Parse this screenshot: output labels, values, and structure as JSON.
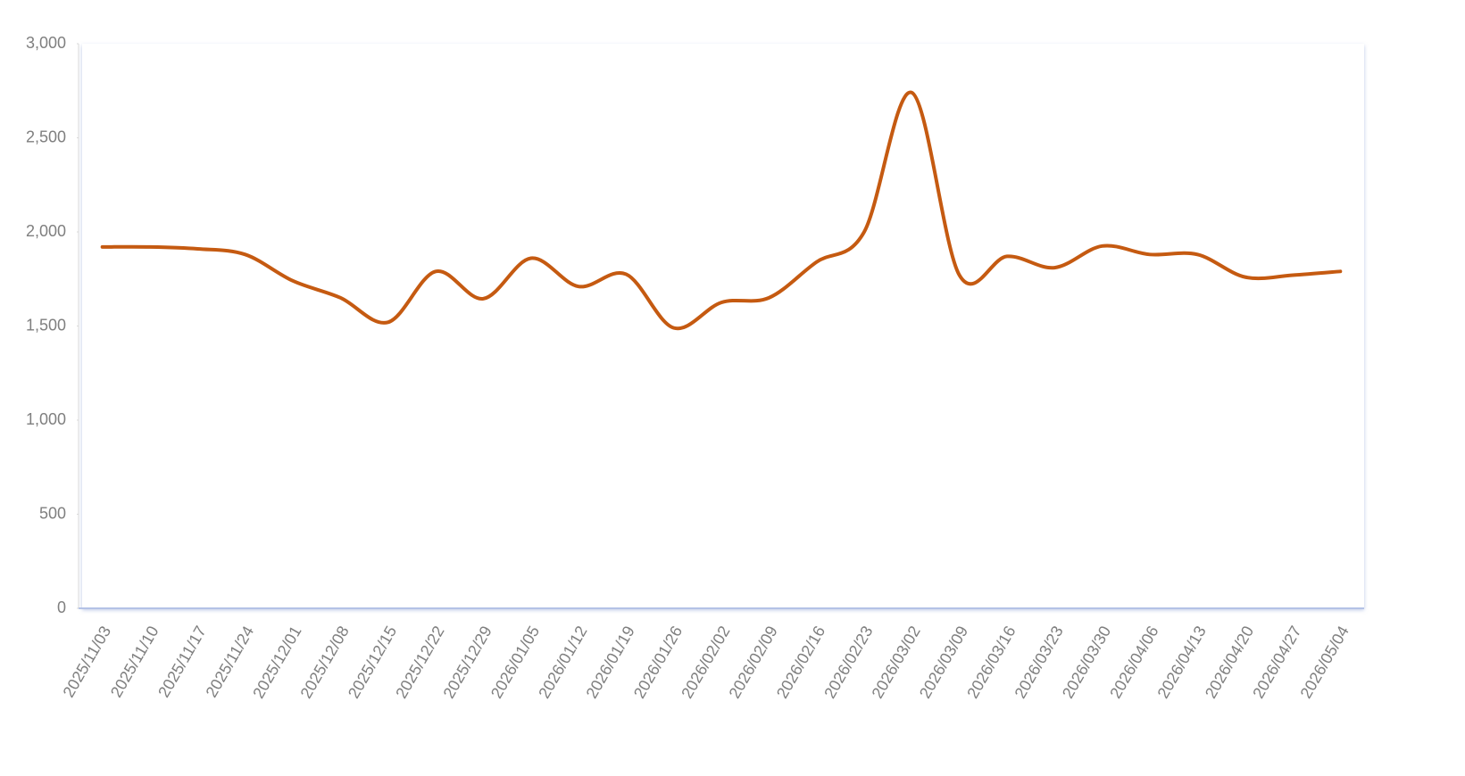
{
  "chart_data": {
    "type": "line",
    "categories": [
      "2025/11/03",
      "2025/11/10",
      "2025/11/17",
      "2025/11/24",
      "2025/12/01",
      "2025/12/08",
      "2025/12/15",
      "2025/12/22",
      "2025/12/29",
      "2026/01/05",
      "2026/01/12",
      "2026/01/19",
      "2026/01/26",
      "2026/02/02",
      "2026/02/09",
      "2026/02/16",
      "2026/02/23",
      "2026/03/02",
      "2026/03/09",
      "2026/03/16",
      "2026/03/23",
      "2026/03/30",
      "2026/04/06",
      "2026/04/13",
      "2026/04/20",
      "2026/04/27",
      "2026/05/04"
    ],
    "values": [
      1920,
      1920,
      1910,
      1880,
      1740,
      1650,
      1520,
      1790,
      1645,
      1860,
      1710,
      1775,
      1490,
      1625,
      1650,
      1840,
      2000,
      2740,
      1770,
      1870,
      1810,
      1925,
      1880,
      1880,
      1760,
      1770,
      1790
    ],
    "color": "#c55a11",
    "smooth": true,
    "ylim": [
      0,
      3000
    ],
    "yticks": [
      0,
      {
        "value": 500,
        "label": "500"
      },
      {
        "value": 1000,
        "label": "1,000"
      },
      {
        "value": 1500,
        "label": "1,500"
      },
      {
        "value": 2000,
        "label": "2,000"
      },
      {
        "value": 2500,
        "label": "2,500"
      },
      {
        "value": 3000,
        "label": "3,000"
      }
    ]
  }
}
